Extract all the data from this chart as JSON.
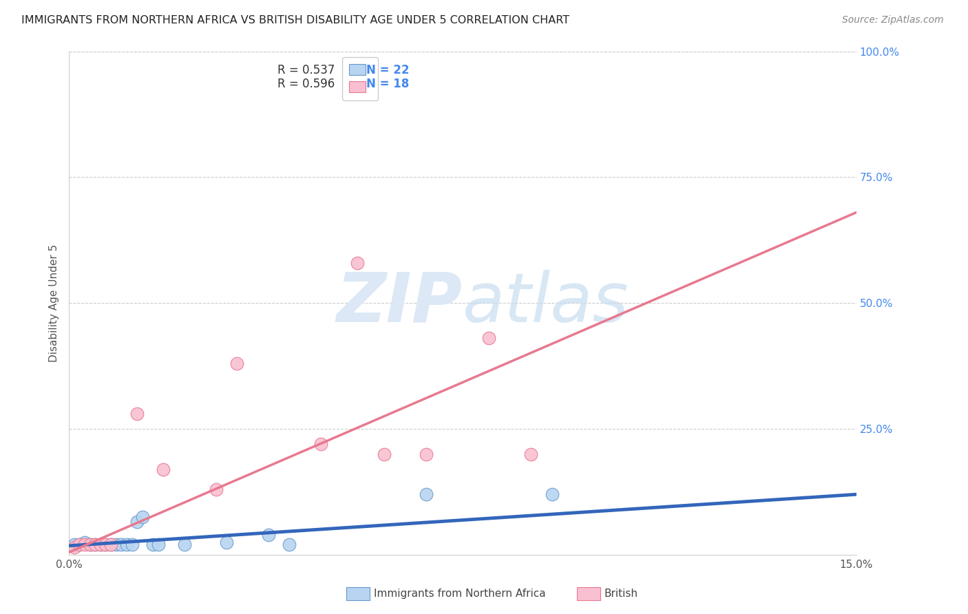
{
  "title": "IMMIGRANTS FROM NORTHERN AFRICA VS BRITISH DISABILITY AGE UNDER 5 CORRELATION CHART",
  "source": "Source: ZipAtlas.com",
  "ylabel": "Disability Age Under 5",
  "xlim": [
    0.0,
    0.15
  ],
  "ylim": [
    0.0,
    1.0
  ],
  "xtick_vals": [
    0.0,
    0.15
  ],
  "xtick_labels": [
    "0.0%",
    "15.0%"
  ],
  "ytick_positions_right": [
    1.0,
    0.75,
    0.5,
    0.25
  ],
  "ytick_labels_right": [
    "100.0%",
    "75.0%",
    "50.0%",
    "25.0%"
  ],
  "blue_scatter_x": [
    0.001,
    0.002,
    0.003,
    0.004,
    0.005,
    0.006,
    0.007,
    0.008,
    0.009,
    0.01,
    0.011,
    0.012,
    0.013,
    0.014,
    0.016,
    0.017,
    0.022,
    0.03,
    0.038,
    0.042,
    0.068,
    0.092
  ],
  "blue_scatter_y": [
    0.02,
    0.02,
    0.025,
    0.02,
    0.02,
    0.02,
    0.02,
    0.02,
    0.02,
    0.02,
    0.02,
    0.02,
    0.065,
    0.075,
    0.02,
    0.02,
    0.02,
    0.025,
    0.04,
    0.02,
    0.12,
    0.12
  ],
  "pink_scatter_x": [
    0.001,
    0.002,
    0.003,
    0.004,
    0.005,
    0.006,
    0.007,
    0.008,
    0.013,
    0.018,
    0.028,
    0.032,
    0.048,
    0.055,
    0.06,
    0.068,
    0.08,
    0.088
  ],
  "pink_scatter_y": [
    0.015,
    0.02,
    0.02,
    0.02,
    0.02,
    0.02,
    0.02,
    0.02,
    0.28,
    0.17,
    0.13,
    0.38,
    0.22,
    0.58,
    0.2,
    0.2,
    0.43,
    0.2
  ],
  "blue_line_x": [
    0.0,
    0.15
  ],
  "blue_line_y": [
    0.018,
    0.12
  ],
  "pink_line_x": [
    0.0,
    0.15
  ],
  "pink_line_y": [
    0.005,
    0.68
  ],
  "scatter_size": 180,
  "blue_fill": "#b8d4f0",
  "blue_edge": "#6699cc",
  "pink_fill": "#f8c0d0",
  "pink_edge": "#e87890",
  "blue_line_color": "#3366bb",
  "pink_line_color": "#e87890",
  "background_color": "#ffffff",
  "grid_color": "#cccccc",
  "title_color": "#222222",
  "watermark_color": "#dce8f5",
  "right_axis_color": "#4488ee",
  "legend_R1": "R = 0.537",
  "legend_N1": "N = 22",
  "legend_R2": "R = 0.596",
  "legend_N2": "N = 18",
  "bottom_label1": "Immigrants from Northern Africa",
  "bottom_label2": "British"
}
